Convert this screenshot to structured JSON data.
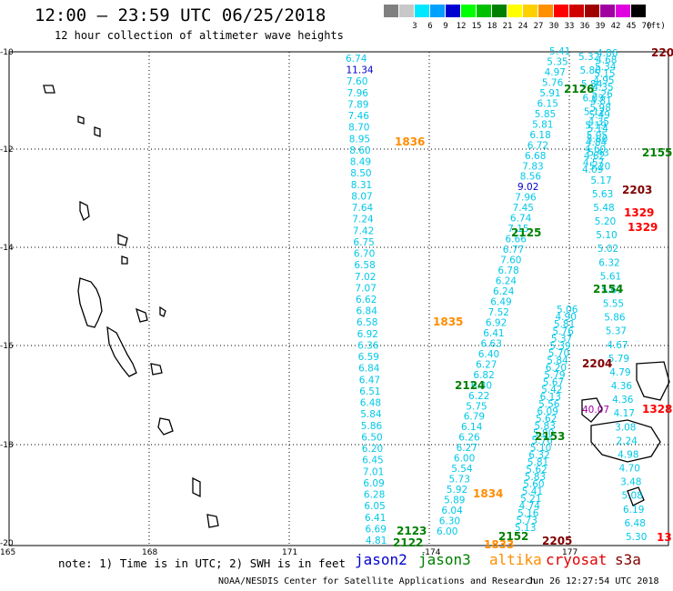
{
  "header": {
    "title": "12:00 — 23:59 UTC 06/25/2018",
    "subtitle": "12 hour collection of altimeter wave heights"
  },
  "legend": {
    "unit": "(ft)",
    "bins": [
      {
        "label": "",
        "color": "#808080"
      },
      {
        "label": "3",
        "color": "#c8c8c8"
      },
      {
        "label": "6",
        "color": "#00e8ff"
      },
      {
        "label": "9",
        "color": "#00a0ff"
      },
      {
        "label": "12",
        "color": "#0000d0"
      },
      {
        "label": "15",
        "color": "#00ff00"
      },
      {
        "label": "18",
        "color": "#00c000"
      },
      {
        "label": "21",
        "color": "#008000"
      },
      {
        "label": "24",
        "color": "#ffff00"
      },
      {
        "label": "27",
        "color": "#ffd000"
      },
      {
        "label": "30",
        "color": "#ff9000"
      },
      {
        "label": "33",
        "color": "#ff0000"
      },
      {
        "label": "36",
        "color": "#d00000"
      },
      {
        "label": "39",
        "color": "#a00000"
      },
      {
        "label": "42",
        "color": "#a000a0"
      },
      {
        "label": "45",
        "color": "#e000e0"
      },
      {
        "label": "70",
        "color": "#000000"
      }
    ]
  },
  "axes": {
    "lat_labels": [
      "-10",
      "-12",
      "-14",
      "-16",
      "-18",
      "-20"
    ],
    "lon_labels": [
      "165",
      "168",
      "171",
      "-174",
      "177"
    ]
  },
  "track_labels": [
    {
      "text": "1836",
      "color": "#ff8c00"
    },
    {
      "text": "2126",
      "color": "#008000"
    },
    {
      "text": "2155",
      "color": "#008000"
    },
    {
      "text": "2203",
      "color": "#800000"
    },
    {
      "text": "1329",
      "color": "#ff0000"
    },
    {
      "text": "1329",
      "color": "#ff0000"
    },
    {
      "text": "2125",
      "color": "#008000"
    },
    {
      "text": "2154",
      "color": "#008000"
    },
    {
      "text": "1835",
      "color": "#ff8c00"
    },
    {
      "text": "2124",
      "color": "#008000"
    },
    {
      "text": "2204",
      "color": "#800000"
    },
    {
      "text": "2153",
      "color": "#008000"
    },
    {
      "text": "1834",
      "color": "#ff8c00"
    },
    {
      "text": "2123",
      "color": "#008000"
    },
    {
      "text": "2122",
      "color": "#008000"
    },
    {
      "text": "1833",
      "color": "#ff8c00"
    },
    {
      "text": "2152",
      "color": "#008000"
    },
    {
      "text": "2205",
      "color": "#800000"
    },
    {
      "text": "220",
      "color": "#800000"
    },
    {
      "text": "1328",
      "color": "#ff0000"
    },
    {
      "text": "13",
      "color": "#ff0000"
    }
  ],
  "tracks": {
    "track_a": [
      "6.74",
      "11.34",
      "7.60",
      "7.96",
      "7.89",
      "7.46",
      "8.70",
      "8.95",
      "8.60",
      "8.49",
      "8.50",
      "8.31",
      "8.07",
      "7.64",
      "7.24",
      "7.42",
      "6.75",
      "6.70",
      "6.58",
      "7.02",
      "7.07",
      "6.62",
      "6.84",
      "6.58",
      "6.92",
      "6.36",
      "6.59",
      "6.84",
      "6.47",
      "6.51",
      "6.48",
      "5.84",
      "5.86",
      "6.50",
      "6.20",
      "6.45",
      "7.01",
      "6.09",
      "6.28",
      "6.05",
      "6.41",
      "6.69",
      "4.81"
    ],
    "track_b": [
      "5.41",
      "5.35",
      "4.97",
      "5.76",
      "5.91",
      "6.15",
      "5.85",
      "5.81",
      "6.18",
      "6.72",
      "6.68",
      "7.83",
      "8.56",
      "9.02",
      "7.96",
      "7.45",
      "6.74",
      "7.15",
      "6.66",
      "6.77",
      "7.60",
      "6.78",
      "6.24",
      "6.24",
      "6.49",
      "7.52",
      "6.92",
      "6.41",
      "6.63",
      "6.40",
      "6.27",
      "6.82",
      "6.30",
      "6.22",
      "5.75",
      "6.79",
      "6.14",
      "6.26",
      "6.27",
      "6.00",
      "5.54",
      "5.73",
      "5.92",
      "5.89",
      "6.04",
      "6.30",
      "6.00"
    ],
    "track_c": [
      "5.32",
      "5.80",
      "5.84",
      "6.03",
      "5.12",
      "5.19",
      "5.80",
      "5.43",
      "5.20",
      "5.17",
      "5.63",
      "5.48",
      "5.20",
      "5.10",
      "5.02",
      "6.32",
      "5.61",
      "5.67",
      "5.55",
      "5.86",
      "5.37",
      "4.67",
      "5.79",
      "4.79",
      "4.36",
      "4.36",
      "4.17",
      "3.08",
      "2.24",
      "4.98",
      "4.70",
      "3.48",
      "5.08",
      "6.19",
      "6.48",
      "5.30"
    ],
    "track_d": [
      "5.06",
      "4.90",
      "5.81",
      "5.76",
      "5.37",
      "5.39",
      "5.70",
      "5.84",
      "6.20",
      "5.79",
      "5.67",
      "5.42",
      "6.13",
      "5.56",
      "6.09",
      "5.62",
      "5.83",
      "5.80",
      "5.76",
      "5.10",
      "6.32",
      "5.81",
      "5.62",
      "5.83",
      "5.60",
      "5.41",
      "5.21",
      "4.74",
      "5.16",
      "5.73",
      "5.13"
    ],
    "track_e": [
      "4.86",
      "4.68",
      "5.34",
      "5.15",
      "4.95",
      "4.35",
      "5.26",
      "4.81",
      "5.98",
      "5.49",
      "4.35",
      "5.14",
      "5.05",
      "4.84",
      "4.60",
      "4.62",
      "4.57",
      "4.09"
    ],
    "purple": "40.07"
  },
  "note": "note: 1) Time is in UTC; 2) SWH is in feet",
  "satellites": [
    {
      "name": "jason2",
      "color": "#0000cc"
    },
    {
      "name": "jason3",
      "color": "#008000"
    },
    {
      "name": "altika",
      "color": "#ff8c00"
    },
    {
      "name": "cryosat",
      "color": "#e00000"
    },
    {
      "name": "s3a",
      "color": "#800000"
    }
  ],
  "footer": "NOAA/NESDIS Center for Satellite Applications and Research",
  "timestamp": "Jun 26 12:27:54 UTC 2018"
}
